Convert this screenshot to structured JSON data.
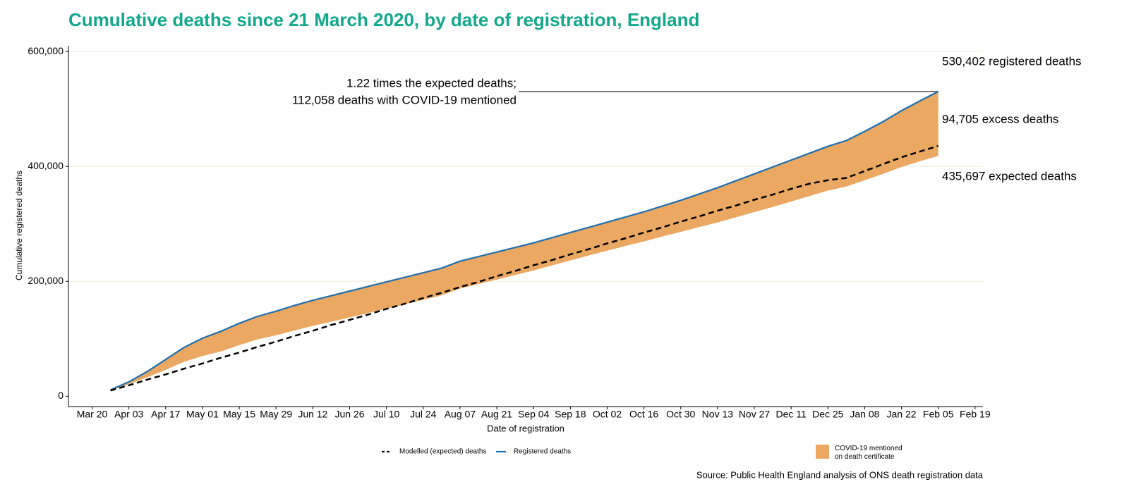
{
  "chart_data": {
    "type": "line",
    "title": "Cumulative deaths since 21 March 2020, by date of registration, England",
    "xlabel": "Date of registration",
    "ylabel": "Cumulative registered deaths",
    "source": "Source: Public Health England analysis of ONS death registration data",
    "x": [
      "Mar 27",
      "Apr 03",
      "Apr 10",
      "Apr 17",
      "Apr 24",
      "May 01",
      "May 08",
      "May 15",
      "May 22",
      "May 29",
      "Jun 05",
      "Jun 12",
      "Jun 19",
      "Jun 26",
      "Jul 03",
      "Jul 10",
      "Jul 17",
      "Jul 24",
      "Jul 31",
      "Aug 07",
      "Aug 14",
      "Aug 21",
      "Aug 28",
      "Sep 04",
      "Sep 11",
      "Sep 18",
      "Sep 25",
      "Oct 02",
      "Oct 09",
      "Oct 16",
      "Oct 23",
      "Oct 30",
      "Nov 06",
      "Nov 13",
      "Nov 20",
      "Nov 27",
      "Dec 04",
      "Dec 11",
      "Dec 18",
      "Dec 25",
      "Jan 01",
      "Jan 08",
      "Jan 15",
      "Jan 22",
      "Jan 29",
      "Feb 05"
    ],
    "xlim": [
      "Mar 11",
      "Feb 22"
    ],
    "xticks": [
      "Mar 20",
      "Apr 03",
      "Apr 17",
      "May 01",
      "May 15",
      "May 29",
      "Jun 12",
      "Jun 26",
      "Jul 10",
      "Jul 24",
      "Aug 07",
      "Aug 21",
      "Sep 04",
      "Sep 18",
      "Oct 02",
      "Oct 16",
      "Oct 30",
      "Nov 13",
      "Nov 27",
      "Dec 11",
      "Dec 25",
      "Jan 08",
      "Jan 22",
      "Feb 05",
      "Feb 19"
    ],
    "ylim": [
      -18000,
      610000
    ],
    "yticks": [
      0,
      {
        "value": 200000,
        "label": "200,000"
      },
      {
        "value": 400000,
        "label": "400,000"
      },
      {
        "value": 600000,
        "label": "600,000"
      }
    ],
    "grid": true,
    "series": [
      {
        "name": "COVID-19 mentioned\non death certificate",
        "color": "#eba863",
        "kind": "band",
        "below": 1,
        "values": [
          1000,
          4000,
          10000,
          18000,
          25000,
          31000,
          35000,
          38000,
          40000,
          42000,
          43500,
          44500,
          45300,
          45900,
          46400,
          46700,
          47000,
          47200,
          47400,
          47600,
          47800,
          47900,
          48000,
          48100,
          48300,
          48600,
          49000,
          49600,
          50300,
          51500,
          53000,
          55000,
          57500,
          60500,
          63500,
          66500,
          69500,
          72000,
          74500,
          77000,
          80000,
          85000,
          91000,
          98000,
          105000,
          112058
        ]
      },
      {
        "name": "Registered deaths",
        "color": "#1f6fae",
        "kind": "line",
        "values": [
          11000,
          25000,
          43000,
          64000,
          85000,
          101000,
          113000,
          127000,
          139000,
          148000,
          158000,
          167000,
          175000,
          183000,
          191000,
          199000,
          207000,
          215000,
          223000,
          235000,
          243000,
          251000,
          259000,
          267000,
          276000,
          285000,
          294000,
          303000,
          312000,
          321000,
          331000,
          341000,
          352000,
          363000,
          375000,
          387000,
          399000,
          411000,
          423000,
          435000,
          445000,
          461000,
          478000,
          497000,
          514000,
          530402
        ]
      },
      {
        "name": "Modelled (expected) deaths",
        "color": "#000000",
        "kind": "dashed",
        "values": [
          10000,
          19000,
          29000,
          38000,
          48000,
          57000,
          67000,
          76000,
          86000,
          95000,
          105000,
          114000,
          124000,
          133000,
          142000,
          152000,
          161000,
          171000,
          180000,
          190000,
          199000,
          209000,
          218000,
          228000,
          237000,
          247000,
          256000,
          266000,
          275000,
          285000,
          294000,
          304000,
          313000,
          323000,
          332000,
          342000,
          351000,
          361000,
          370000,
          376000,
          380000,
          392000,
          404000,
          416000,
          426000,
          435697
        ]
      }
    ],
    "legend_order": [
      2,
      1,
      0
    ],
    "annotations": [
      "530,402 registered deaths",
      "94,705 excess deaths",
      "435,697 expected deaths",
      "1.22 times the expected deaths;",
      "112,058 deaths with COVID-19 mentioned"
    ]
  }
}
